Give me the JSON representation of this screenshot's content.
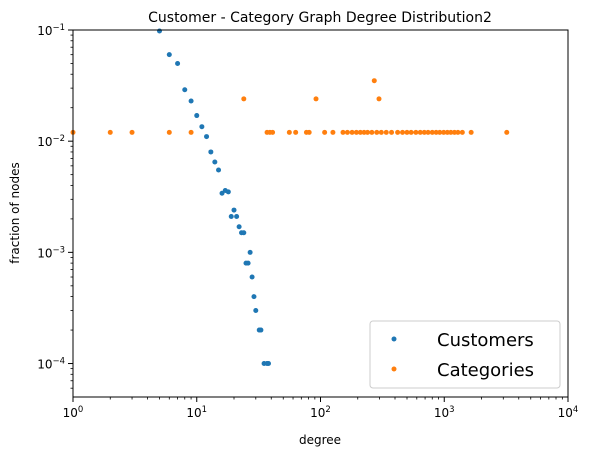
{
  "chart_data": {
    "type": "scatter",
    "title": "Customer - Category Graph Degree Distribution2",
    "xlabel": "degree",
    "ylabel": "fraction of nodes",
    "xscale": "log",
    "yscale": "log",
    "xlim": [
      1,
      10000
    ],
    "ylim": [
      5e-05,
      0.1
    ],
    "grid": false,
    "legend_placement": "bottom-right",
    "x_ticks": [
      {
        "value": 1,
        "base": "10",
        "exp": "0"
      },
      {
        "value": 10,
        "base": "10",
        "exp": "1"
      },
      {
        "value": 100,
        "base": "10",
        "exp": "2"
      },
      {
        "value": 1000,
        "base": "10",
        "exp": "3"
      },
      {
        "value": 10000,
        "base": "10",
        "exp": "4"
      }
    ],
    "y_ticks": [
      {
        "value": 0.0001,
        "base": "10",
        "exp": "−4"
      },
      {
        "value": 0.001,
        "base": "10",
        "exp": "−3"
      },
      {
        "value": 0.01,
        "base": "10",
        "exp": "−2"
      },
      {
        "value": 0.1,
        "base": "10",
        "exp": "−1"
      }
    ],
    "series": [
      {
        "name": "Customers",
        "color": "#1f77b4",
        "points": [
          [
            5,
            0.098
          ],
          [
            6,
            0.06
          ],
          [
            7,
            0.05
          ],
          [
            8,
            0.029
          ],
          [
            9,
            0.023
          ],
          [
            10,
            0.017
          ],
          [
            11,
            0.0135
          ],
          [
            12,
            0.011
          ],
          [
            13,
            0.008
          ],
          [
            14,
            0.0065
          ],
          [
            15,
            0.0055
          ],
          [
            16,
            0.0034
          ],
          [
            17,
            0.0036
          ],
          [
            18,
            0.0035
          ],
          [
            19,
            0.0021
          ],
          [
            20,
            0.0024
          ],
          [
            21,
            0.0021
          ],
          [
            22,
            0.0017
          ],
          [
            23,
            0.0015
          ],
          [
            24,
            0.0015
          ],
          [
            25,
            0.0008
          ],
          [
            26,
            0.0008
          ],
          [
            27,
            0.001
          ],
          [
            28,
            0.0006
          ],
          [
            29,
            0.0004
          ],
          [
            30,
            0.0003
          ],
          [
            32,
            0.0002
          ],
          [
            33,
            0.0002
          ],
          [
            35,
            0.0001
          ],
          [
            37,
            0.0001
          ],
          [
            38,
            0.0001
          ]
        ]
      },
      {
        "name": "Categories",
        "color": "#ff7f0e",
        "points": [
          [
            1,
            0.012
          ],
          [
            2,
            0.012
          ],
          [
            3,
            0.012
          ],
          [
            6,
            0.012
          ],
          [
            9,
            0.012
          ],
          [
            24,
            0.024
          ],
          [
            37,
            0.012
          ],
          [
            39,
            0.012
          ],
          [
            41,
            0.012
          ],
          [
            56,
            0.012
          ],
          [
            63,
            0.012
          ],
          [
            77,
            0.012
          ],
          [
            81,
            0.012
          ],
          [
            92,
            0.024
          ],
          [
            108,
            0.012
          ],
          [
            126,
            0.012
          ],
          [
            152,
            0.012
          ],
          [
            165,
            0.012
          ],
          [
            180,
            0.012
          ],
          [
            195,
            0.012
          ],
          [
            210,
            0.012
          ],
          [
            225,
            0.012
          ],
          [
            240,
            0.012
          ],
          [
            260,
            0.012
          ],
          [
            272,
            0.035
          ],
          [
            285,
            0.012
          ],
          [
            297,
            0.024
          ],
          [
            310,
            0.012
          ],
          [
            340,
            0.012
          ],
          [
            375,
            0.012
          ],
          [
            420,
            0.012
          ],
          [
            460,
            0.012
          ],
          [
            500,
            0.012
          ],
          [
            540,
            0.012
          ],
          [
            590,
            0.012
          ],
          [
            640,
            0.012
          ],
          [
            690,
            0.012
          ],
          [
            740,
            0.012
          ],
          [
            800,
            0.012
          ],
          [
            860,
            0.012
          ],
          [
            920,
            0.012
          ],
          [
            990,
            0.012
          ],
          [
            1060,
            0.012
          ],
          [
            1130,
            0.012
          ],
          [
            1210,
            0.012
          ],
          [
            1290,
            0.012
          ],
          [
            1400,
            0.012
          ],
          [
            1650,
            0.012
          ],
          [
            3200,
            0.012
          ]
        ]
      }
    ]
  }
}
